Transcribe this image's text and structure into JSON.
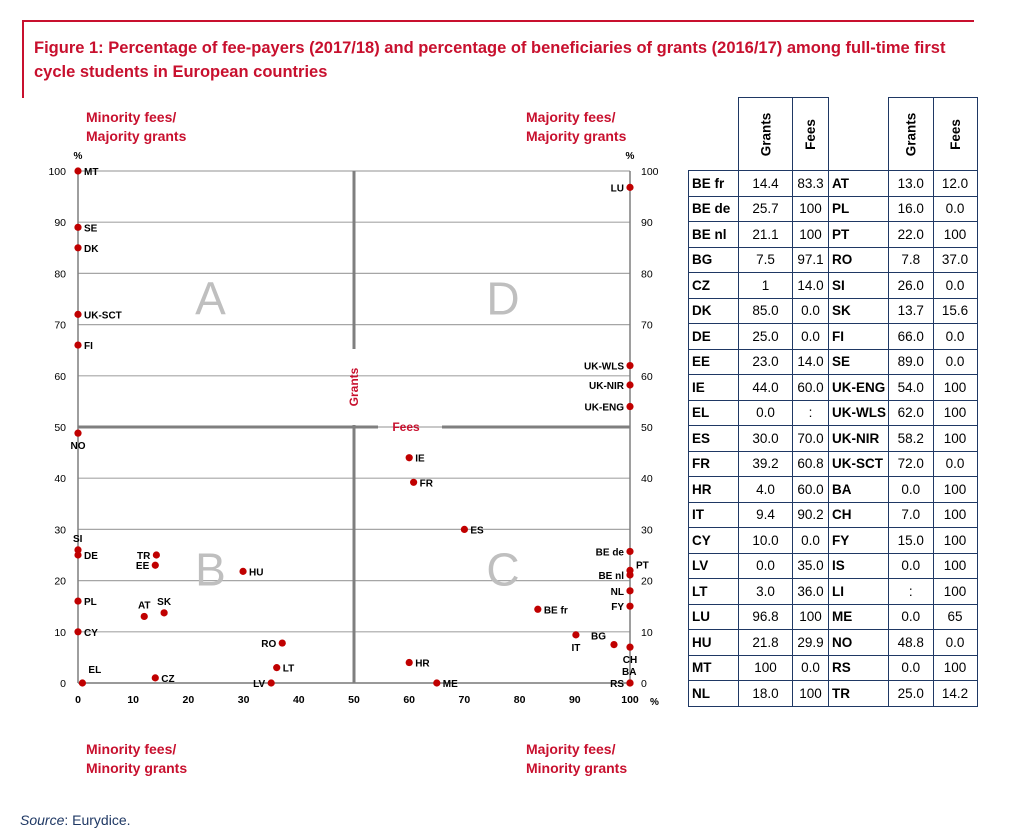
{
  "title": "Figure 1: Percentage of fee-payers (2017/18) and percentage of beneficiaries of grants (2016/17) among full-time first cycle students in European countries",
  "source_label": "Source",
  "source_text": ": Eurydice.",
  "quadrant_labels": {
    "top_left": [
      "Minority fees/",
      "Majority grants"
    ],
    "top_right": [
      "Majority fees/",
      "Majority grants"
    ],
    "bottom_left": [
      "Minority fees/",
      "Minority grants"
    ],
    "bottom_right": [
      "Majority fees/",
      "Minority grants"
    ]
  },
  "quadrant_letters": {
    "A": "A",
    "B": "B",
    "C": "C",
    "D": "D"
  },
  "axis_unit": "%",
  "divider_labels": {
    "grants": "Grants",
    "fees": "Fees"
  },
  "colors": {
    "accent": "#c8102e",
    "point": "#c00000",
    "table_border": "#1f3864",
    "grid": "#a6a6a6",
    "divider": "#7f7f7f"
  },
  "chart_data": {
    "type": "scatter",
    "x_axis": "Fees",
    "y_axis": "Grants",
    "xlim": [
      0,
      100
    ],
    "ylim": [
      0,
      100
    ],
    "x_ticks": [
      0,
      10,
      20,
      30,
      40,
      50,
      60,
      70,
      80,
      90,
      100
    ],
    "y_ticks": [
      0,
      10,
      20,
      30,
      40,
      50,
      60,
      70,
      80,
      90,
      100
    ],
    "dividers": {
      "x": 50,
      "y": 50
    },
    "grid": "horizontal",
    "points": [
      {
        "label": "MT",
        "x": 0,
        "y": 100
      },
      {
        "label": "LU",
        "x": 100,
        "y": 96.8
      },
      {
        "label": "SE",
        "x": 0,
        "y": 89
      },
      {
        "label": "DK",
        "x": 0,
        "y": 85
      },
      {
        "label": "UK-SCT",
        "x": 0,
        "y": 72
      },
      {
        "label": "FI",
        "x": 0,
        "y": 66
      },
      {
        "label": "UK-WLS",
        "x": 100,
        "y": 62
      },
      {
        "label": "UK-NIR",
        "x": 100,
        "y": 58.2
      },
      {
        "label": "UK-ENG",
        "x": 100,
        "y": 54
      },
      {
        "label": "NO",
        "x": 0,
        "y": 48.8
      },
      {
        "label": "IE",
        "x": 60,
        "y": 44
      },
      {
        "label": "FR",
        "x": 60.8,
        "y": 39.2
      },
      {
        "label": "ES",
        "x": 70,
        "y": 30
      },
      {
        "label": "SI",
        "x": 0,
        "y": 26
      },
      {
        "label": "DE",
        "x": 0,
        "y": 25
      },
      {
        "label": "TR",
        "x": 14.2,
        "y": 25
      },
      {
        "label": "EE",
        "x": 14,
        "y": 23
      },
      {
        "label": "HU",
        "x": 29.9,
        "y": 21.8
      },
      {
        "label": "BE de",
        "x": 100,
        "y": 25.7
      },
      {
        "label": "PT",
        "x": 100,
        "y": 22
      },
      {
        "label": "BE nl",
        "x": 100,
        "y": 21.1
      },
      {
        "label": "NL",
        "x": 100,
        "y": 18
      },
      {
        "label": "PL",
        "x": 0,
        "y": 16
      },
      {
        "label": "FY",
        "x": 100,
        "y": 15
      },
      {
        "label": "BE fr",
        "x": 83.3,
        "y": 14.4
      },
      {
        "label": "SK",
        "x": 15.6,
        "y": 13.7
      },
      {
        "label": "AT",
        "x": 12,
        "y": 13
      },
      {
        "label": "CY",
        "x": 0,
        "y": 10
      },
      {
        "label": "IT",
        "x": 90.2,
        "y": 9.4
      },
      {
        "label": "RO",
        "x": 37,
        "y": 7.8
      },
      {
        "label": "BG",
        "x": 97.1,
        "y": 7.5
      },
      {
        "label": "CH",
        "x": 100,
        "y": 7
      },
      {
        "label": "HR",
        "x": 60,
        "y": 4
      },
      {
        "label": "LT",
        "x": 36,
        "y": 3
      },
      {
        "label": "EL",
        "x": 0.8,
        "y": 0
      },
      {
        "label": "CZ",
        "x": 14,
        "y": 1
      },
      {
        "label": "LV",
        "x": 35,
        "y": 0
      },
      {
        "label": "ME",
        "x": 65,
        "y": 0
      },
      {
        "label": "BA",
        "x": 100,
        "y": 0
      },
      {
        "label": "RS",
        "x": 100,
        "y": 0
      }
    ]
  },
  "table": {
    "headers": [
      "Grants",
      "Fees"
    ],
    "rows": [
      {
        "c1": "BE fr",
        "g1": "14.4",
        "f1": "83.3",
        "c2": "AT",
        "g2": "13.0",
        "f2": "12.0"
      },
      {
        "c1": "BE de",
        "g1": "25.7",
        "f1": "100",
        "c2": "PL",
        "g2": "16.0",
        "f2": "0.0"
      },
      {
        "c1": "BE nl",
        "g1": "21.1",
        "f1": "100",
        "c2": "PT",
        "g2": "22.0",
        "f2": "100"
      },
      {
        "c1": "BG",
        "g1": "7.5",
        "f1": "97.1",
        "c2": "RO",
        "g2": "7.8",
        "f2": "37.0"
      },
      {
        "c1": "CZ",
        "g1": "1",
        "f1": "14.0",
        "c2": "SI",
        "g2": "26.0",
        "f2": "0.0"
      },
      {
        "c1": "DK",
        "g1": "85.0",
        "f1": "0.0",
        "c2": "SK",
        "g2": "13.7",
        "f2": "15.6"
      },
      {
        "c1": "DE",
        "g1": "25.0",
        "f1": "0.0",
        "c2": "FI",
        "g2": "66.0",
        "f2": "0.0"
      },
      {
        "c1": "EE",
        "g1": "23.0",
        "f1": "14.0",
        "c2": "SE",
        "g2": "89.0",
        "f2": "0.0"
      },
      {
        "c1": "IE",
        "g1": "44.0",
        "f1": "60.0",
        "c2": "UK-ENG",
        "g2": "54.0",
        "f2": "100"
      },
      {
        "c1": "EL",
        "g1": "0.0",
        "f1": ":",
        "c2": "UK-WLS",
        "g2": "62.0",
        "f2": "100"
      },
      {
        "c1": "ES",
        "g1": "30.0",
        "f1": "70.0",
        "c2": "UK-NIR",
        "g2": "58.2",
        "f2": "100"
      },
      {
        "c1": "FR",
        "g1": "39.2",
        "f1": "60.8",
        "c2": "UK-SCT",
        "g2": "72.0",
        "f2": "0.0"
      },
      {
        "c1": "HR",
        "g1": "4.0",
        "f1": "60.0",
        "c2": "BA",
        "g2": "0.0",
        "f2": "100"
      },
      {
        "c1": "IT",
        "g1": "9.4",
        "f1": "90.2",
        "c2": "CH",
        "g2": "7.0",
        "f2": "100"
      },
      {
        "c1": "CY",
        "g1": "10.0",
        "f1": "0.0",
        "c2": "FY",
        "g2": "15.0",
        "f2": "100"
      },
      {
        "c1": "LV",
        "g1": "0.0",
        "f1": "35.0",
        "c2": "IS",
        "g2": "0.0",
        "f2": "100"
      },
      {
        "c1": "LT",
        "g1": "3.0",
        "f1": "36.0",
        "c2": "LI",
        "g2": ":",
        "f2": "100"
      },
      {
        "c1": "LU",
        "g1": "96.8",
        "f1": "100",
        "c2": "ME",
        "g2": "0.0",
        "f2": "65"
      },
      {
        "c1": "HU",
        "g1": "21.8",
        "f1": "29.9",
        "c2": "NO",
        "g2": "48.8",
        "f2": "0.0"
      },
      {
        "c1": "MT",
        "g1": "100",
        "f1": "0.0",
        "c2": "RS",
        "g2": "0.0",
        "f2": "100"
      },
      {
        "c1": "NL",
        "g1": "18.0",
        "f1": "100",
        "c2": "TR",
        "g2": "25.0",
        "f2": "14.2"
      }
    ]
  }
}
